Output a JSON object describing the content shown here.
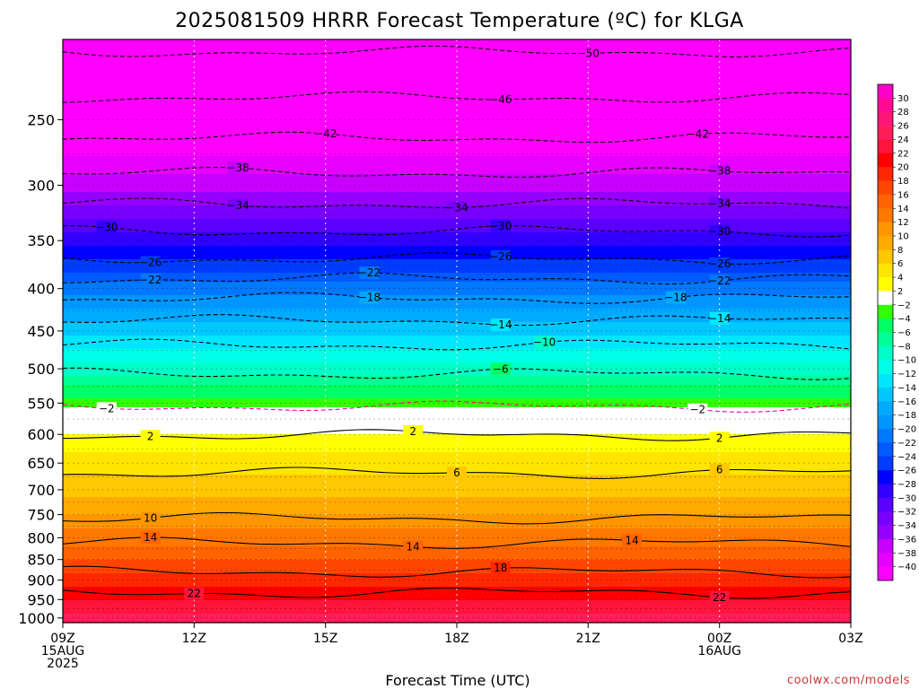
{
  "chart_data": {
    "type": "heatmap",
    "title": "2025081509 HRRR Forecast Temperature (ºC) for KLGA",
    "xlabel": "Forecast Time (UTC)",
    "credit": "coolwx.com/models",
    "x_ticks": [
      {
        "hour": 0,
        "lines": [
          "09Z",
          "15AUG",
          "2025"
        ]
      },
      {
        "hour": 3,
        "lines": [
          "12Z"
        ]
      },
      {
        "hour": 6,
        "lines": [
          "15Z"
        ]
      },
      {
        "hour": 9,
        "lines": [
          "18Z"
        ]
      },
      {
        "hour": 12,
        "lines": [
          "21Z"
        ]
      },
      {
        "hour": 15,
        "lines": [
          "00Z",
          "16AUG"
        ]
      },
      {
        "hour": 18,
        "lines": [
          "03Z"
        ]
      }
    ],
    "y_ticks": [
      250,
      300,
      350,
      400,
      450,
      500,
      550,
      600,
      650,
      700,
      750,
      800,
      850,
      900,
      950,
      1000
    ],
    "y_range": [
      200,
      1013
    ],
    "y_scale": "log-pressure",
    "x_range": [
      0,
      18
    ],
    "surface_pressure": 1013,
    "temperature_profile": [
      {
        "p": 200,
        "t": -52
      },
      {
        "p": 250,
        "t": -44
      },
      {
        "p": 300,
        "t": -37
      },
      {
        "p": 350,
        "t": -29
      },
      {
        "p": 400,
        "t": -21
      },
      {
        "p": 450,
        "t": -15
      },
      {
        "p": 500,
        "t": -9
      },
      {
        "p": 550,
        "t": -3
      },
      {
        "p": 580,
        "t": 0
      },
      {
        "p": 600,
        "t": 2
      },
      {
        "p": 650,
        "t": 5
      },
      {
        "p": 700,
        "t": 7
      },
      {
        "p": 750,
        "t": 10
      },
      {
        "p": 800,
        "t": 13
      },
      {
        "p": 850,
        "t": 16
      },
      {
        "p": 900,
        "t": 19
      },
      {
        "p": 950,
        "t": 22
      },
      {
        "p": 1000,
        "t": 25
      },
      {
        "p": 1013,
        "t": 26
      }
    ],
    "contours": [
      {
        "t": -50,
        "p": 207
      },
      {
        "t": -46,
        "p": 235
      },
      {
        "t": -42,
        "p": 263
      },
      {
        "t": -38,
        "p": 290
      },
      {
        "t": -34,
        "p": 316
      },
      {
        "t": -30,
        "p": 341
      },
      {
        "t": -26,
        "p": 368
      },
      {
        "t": -22,
        "p": 389
      },
      {
        "t": -18,
        "p": 411
      },
      {
        "t": -14,
        "p": 437
      },
      {
        "t": -10,
        "p": 468
      },
      {
        "t": -6,
        "p": 507
      },
      {
        "t": -2,
        "p": 555
      },
      {
        "t": 2,
        "p": 601
      },
      {
        "t": 6,
        "p": 668
      },
      {
        "t": 10,
        "p": 758
      },
      {
        "t": 14,
        "p": 812
      },
      {
        "t": 18,
        "p": 880
      },
      {
        "t": 22,
        "p": 932
      }
    ],
    "contour_labels": [
      {
        "t": -50,
        "lab": "50",
        "h": 12.0
      },
      {
        "t": -46,
        "lab": "46",
        "h": 10.0
      },
      {
        "t": -42,
        "lab": "42",
        "h": 6.0
      },
      {
        "t": -42,
        "lab": "42",
        "h": 14.5
      },
      {
        "t": -38,
        "lab": "38",
        "h": 4.0
      },
      {
        "t": -38,
        "lab": "38",
        "h": 15.0
      },
      {
        "t": -34,
        "lab": "34",
        "h": 4.0
      },
      {
        "t": -34,
        "lab": "34",
        "h": 9.0
      },
      {
        "t": -34,
        "lab": "34",
        "h": 15.0
      },
      {
        "t": -30,
        "lab": "30",
        "h": 1.0
      },
      {
        "t": -30,
        "lab": "30",
        "h": 10.0
      },
      {
        "t": -30,
        "lab": "30",
        "h": 15.0
      },
      {
        "t": -26,
        "lab": "26",
        "h": 2.0
      },
      {
        "t": -26,
        "lab": "26",
        "h": 10.0
      },
      {
        "t": -26,
        "lab": "26",
        "h": 15.0
      },
      {
        "t": -22,
        "lab": "22",
        "h": 2.0
      },
      {
        "t": -22,
        "lab": "22",
        "h": 7.0
      },
      {
        "t": -22,
        "lab": "22",
        "h": 15.0
      },
      {
        "t": -18,
        "lab": "18",
        "h": 7.0
      },
      {
        "t": -18,
        "lab": "18",
        "h": 14.0
      },
      {
        "t": -14,
        "lab": "14",
        "h": 10.0
      },
      {
        "t": -14,
        "lab": "14",
        "h": 15.0
      },
      {
        "t": -10,
        "lab": "10",
        "h": 11.0
      },
      {
        "t": -6,
        "lab": "6",
        "h": 10.0
      },
      {
        "t": -2,
        "lab": "2",
        "h": 1.0
      },
      {
        "t": -2,
        "lab": "2",
        "h": 14.5
      },
      {
        "t": 2,
        "lab": "2",
        "h": 2.0
      },
      {
        "t": 2,
        "lab": "2",
        "h": 8.0
      },
      {
        "t": 2,
        "lab": "2",
        "h": 15.0
      },
      {
        "t": 6,
        "lab": "6",
        "h": 9.0
      },
      {
        "t": 6,
        "lab": "6",
        "h": 15.0
      },
      {
        "t": 10,
        "lab": "10",
        "h": 2.0
      },
      {
        "t": 14,
        "lab": "14",
        "h": 2.0
      },
      {
        "t": 14,
        "lab": "14",
        "h": 8.0
      },
      {
        "t": 14,
        "lab": "14",
        "h": 13.0
      },
      {
        "t": 18,
        "lab": "18",
        "h": 10.0
      },
      {
        "t": 22,
        "lab": "22",
        "h": 3.0
      },
      {
        "t": 22,
        "lab": "22",
        "h": 15.0
      }
    ],
    "colorbar_labels": [
      "30",
      "28",
      "26",
      "24",
      "22",
      "20",
      "18",
      "16",
      "14",
      "12",
      "10",
      "8",
      "6",
      "4",
      "2",
      "−2",
      "−4",
      "−6",
      "−8",
      "−10",
      "−12",
      "−14",
      "−16",
      "−18",
      "−20",
      "−22",
      "−24",
      "−26",
      "−28",
      "−30",
      "−32",
      "−34",
      "−36",
      "−38",
      "−40"
    ],
    "colorbar_colors": [
      "#ff00c8",
      "#ff0a96",
      "#ff1478",
      "#ff1e5a",
      "#ff143c",
      "#ff0000",
      "#ff2800",
      "#ff4600",
      "#ff6400",
      "#ff7800",
      "#ff9600",
      "#ffaa00",
      "#ffc800",
      "#ffe600",
      "#ffff00",
      "#ffffff",
      "#32ff00",
      "#00ff64",
      "#00ff96",
      "#00ffc8",
      "#00ffe6",
      "#00e6ff",
      "#00c8ff",
      "#00aaff",
      "#0096ff",
      "#0078ff",
      "#005aff",
      "#003cff",
      "#0000ff",
      "#3200ff",
      "#5a00ff",
      "#7800ff",
      "#9600ff",
      "#c800ff",
      "#e600ff",
      "#ff00ff"
    ],
    "ground_color": "#a0522d"
  }
}
